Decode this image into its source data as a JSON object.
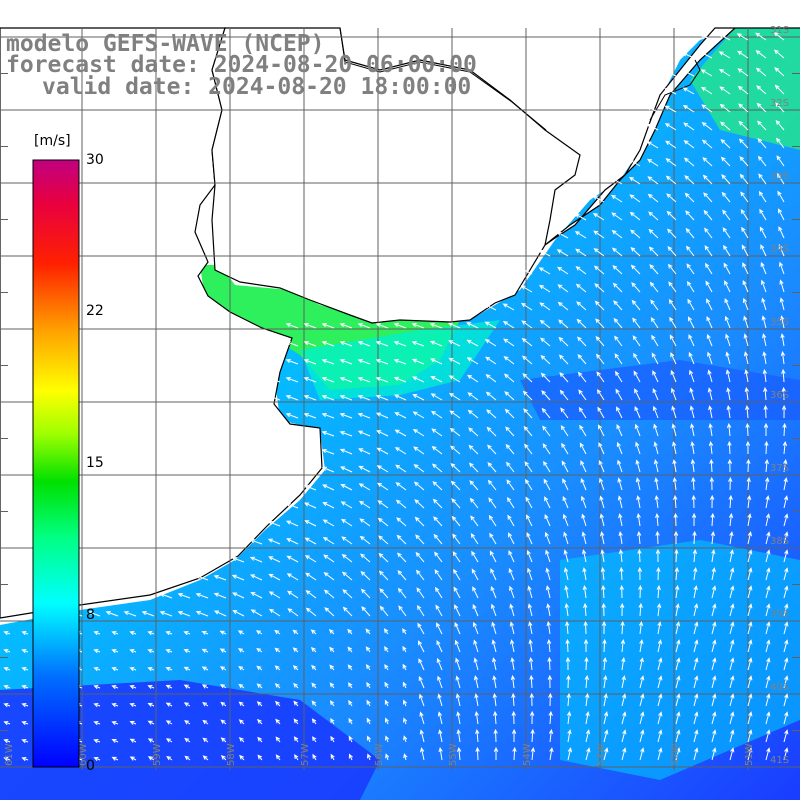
{
  "header": {
    "line1": "modelo GEFS-WAVE (NCEP)",
    "line2": "forecast date: 2024-08-20 06:00:00",
    "line3": "valid date: 2024-08-20 18:00:00"
  },
  "colorbar": {
    "unit": "[m/s]",
    "ticks": [
      "30",
      "22",
      "15",
      "8",
      "0"
    ],
    "colors": [
      "#0000ff",
      "#00a0ff",
      "#00ffff",
      "#00ff7f",
      "#00e000",
      "#7fff00",
      "#ffff00",
      "#ffa500",
      "#ff4000",
      "#ff0000",
      "#e0004a",
      "#c00080"
    ]
  },
  "longitude_labels": [
    "61W",
    "60W",
    "59W",
    "58W",
    "57W",
    "56W",
    "55W",
    "54W",
    "53W",
    "52W",
    "51W"
  ],
  "latitude_labels": [
    "31S",
    "32S",
    "33S",
    "34S",
    "35S",
    "36S",
    "37S",
    "38S",
    "39S",
    "40S",
    "41S"
  ],
  "colors": {
    "ocean_low": "#1a3cff",
    "ocean_mid": "#0f9bff",
    "ocean_high": "#00e6e6",
    "coastal_strong": "#22e36a",
    "land": "#ffffff",
    "grid": "#555555",
    "arrow": "#ffffff"
  }
}
